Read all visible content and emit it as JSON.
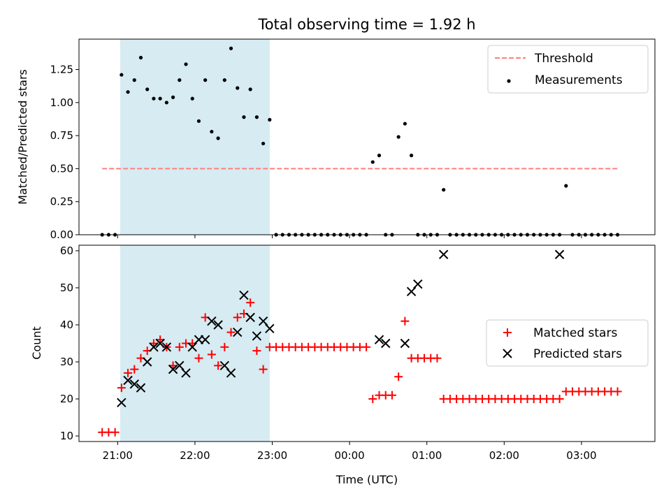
{
  "chart_data": [
    {
      "type": "scatter",
      "title": "Total observing time = 1.92 h",
      "ylabel": "Matched/Predicted stars",
      "xlabel": "",
      "ylim": [
        0,
        1.48
      ],
      "yticks": [
        "0.00",
        "0.25",
        "0.50",
        "0.75",
        "1.00",
        "1.25"
      ],
      "x_range": [
        "20:40",
        "23:50 (+1d 03:50)"
      ],
      "shaded_interval": [
        "21:02",
        "22:58"
      ],
      "shade_color": "#add8e6",
      "legend_position": "top-right",
      "series": [
        {
          "name": "Threshold",
          "style": "dashed-line",
          "color": "#ff7f7f",
          "x": [
            "20:48",
            "03:28"
          ],
          "y": [
            0.5,
            0.5
          ]
        },
        {
          "name": "Measurements",
          "style": "dot",
          "color": "#000000",
          "x": [
            "20:48",
            "20:53",
            "20:58",
            "21:03",
            "21:08",
            "21:13",
            "21:18",
            "21:23",
            "21:28",
            "21:33",
            "21:38",
            "21:43",
            "21:48",
            "21:53",
            "21:58",
            "22:03",
            "22:08",
            "22:13",
            "22:18",
            "22:23",
            "22:28",
            "22:33",
            "22:38",
            "22:43",
            "22:48",
            "22:53",
            "22:58",
            "23:03",
            "23:08",
            "23:13",
            "23:18",
            "23:23",
            "23:28",
            "23:33",
            "23:38",
            "23:43",
            "23:48",
            "23:53",
            "23:58",
            "00:03",
            "00:08",
            "00:13",
            "00:18",
            "00:23",
            "00:28",
            "00:33",
            "00:38",
            "00:43",
            "00:48",
            "00:53",
            "00:58",
            "01:03",
            "01:08",
            "01:13",
            "01:18",
            "01:23",
            "01:28",
            "01:33",
            "01:38",
            "01:43",
            "01:48",
            "01:53",
            "01:58",
            "02:03",
            "02:08",
            "02:13",
            "02:18",
            "02:23",
            "02:28",
            "02:33",
            "02:38",
            "02:43",
            "02:48",
            "02:53",
            "02:58",
            "03:03",
            "03:08",
            "03:13",
            "03:18",
            "03:23",
            "03:28"
          ],
          "y": [
            0,
            0,
            0,
            1.21,
            1.08,
            1.17,
            1.34,
            1.1,
            1.03,
            1.03,
            1.0,
            1.04,
            1.17,
            1.29,
            1.03,
            0.86,
            1.17,
            0.78,
            0.73,
            1.17,
            1.41,
            1.11,
            0.89,
            1.1,
            0.89,
            0.69,
            0.87,
            0,
            0,
            0,
            0,
            0,
            0,
            0,
            0,
            0,
            0,
            0,
            0,
            0,
            0,
            0,
            0.55,
            0.6,
            0,
            0,
            0.74,
            0.84,
            0.6,
            0,
            0,
            0,
            0,
            0.34,
            0,
            0,
            0,
            0,
            0,
            0,
            0,
            0,
            0,
            0,
            0,
            0,
            0,
            0,
            0,
            0,
            0,
            0,
            0.37,
            0,
            0,
            0,
            0,
            0,
            0,
            0,
            0
          ]
        }
      ]
    },
    {
      "type": "scatter",
      "title": "",
      "ylabel": "Count",
      "xlabel": "Time (UTC)",
      "ylim": [
        8.5,
        61.5
      ],
      "yticks": [
        "10",
        "20",
        "30",
        "40",
        "50",
        "60"
      ],
      "xticks": [
        "21:00",
        "22:00",
        "23:00",
        "00:00",
        "01:00",
        "02:00",
        "03:00"
      ],
      "shaded_interval": [
        "21:02",
        "22:58"
      ],
      "shade_color": "#add8e6",
      "legend_position": "center-right",
      "series": [
        {
          "name": "Matched stars",
          "marker": "plus",
          "color": "#ff0000",
          "x": [
            "20:48",
            "20:53",
            "20:58",
            "21:03",
            "21:08",
            "21:13",
            "21:18",
            "21:23",
            "21:28",
            "21:33",
            "21:38",
            "21:43",
            "21:48",
            "21:53",
            "21:58",
            "22:03",
            "22:08",
            "22:13",
            "22:18",
            "22:23",
            "22:28",
            "22:33",
            "22:38",
            "22:43",
            "22:48",
            "22:53",
            "22:58",
            "23:03",
            "23:08",
            "23:13",
            "23:18",
            "23:23",
            "23:28",
            "23:33",
            "23:38",
            "23:43",
            "23:48",
            "23:53",
            "23:58",
            "00:03",
            "00:08",
            "00:13",
            "00:18",
            "00:23",
            "00:28",
            "00:33",
            "00:38",
            "00:43",
            "00:48",
            "00:53",
            "00:58",
            "01:03",
            "01:08",
            "01:13",
            "01:18",
            "01:23",
            "01:28",
            "01:33",
            "01:38",
            "01:43",
            "01:48",
            "01:53",
            "01:58",
            "02:03",
            "02:08",
            "02:13",
            "02:18",
            "02:23",
            "02:28",
            "02:33",
            "02:38",
            "02:43",
            "02:48",
            "02:53",
            "02:58",
            "03:03",
            "03:08",
            "03:13",
            "03:18",
            "03:23",
            "03:28"
          ],
          "y": [
            11,
            11,
            11,
            23,
            27,
            28,
            31,
            33,
            35,
            36,
            34,
            29,
            34,
            35,
            35,
            31,
            42,
            32,
            29,
            34,
            38,
            42,
            43,
            46,
            33,
            28,
            34,
            34,
            34,
            34,
            34,
            34,
            34,
            34,
            34,
            34,
            34,
            34,
            34,
            34,
            34,
            34,
            20,
            21,
            21,
            21,
            26,
            41,
            31,
            31,
            31,
            31,
            31,
            20,
            20,
            20,
            20,
            20,
            20,
            20,
            20,
            20,
            20,
            20,
            20,
            20,
            20,
            20,
            20,
            20,
            20,
            20,
            22,
            22,
            22,
            22,
            22,
            22,
            22,
            22,
            22
          ]
        },
        {
          "name": "Predicted stars",
          "marker": "x",
          "color": "#000000",
          "x": [
            "21:03",
            "21:08",
            "21:13",
            "21:18",
            "21:23",
            "21:28",
            "21:33",
            "21:38",
            "21:43",
            "21:48",
            "21:53",
            "21:58",
            "22:03",
            "22:08",
            "22:13",
            "22:18",
            "22:23",
            "22:28",
            "22:33",
            "22:38",
            "22:43",
            "22:48",
            "22:53",
            "22:58",
            "00:23",
            "00:28",
            "00:43",
            "00:48",
            "00:53",
            "01:13",
            "02:43"
          ],
          "y": [
            19,
            25,
            24,
            23,
            30,
            34,
            35,
            34,
            28,
            29,
            27,
            34,
            36,
            36,
            41,
            40,
            29,
            27,
            38,
            48,
            42,
            37,
            41,
            39,
            36,
            35,
            35,
            49,
            51,
            59,
            59
          ]
        }
      ]
    }
  ]
}
